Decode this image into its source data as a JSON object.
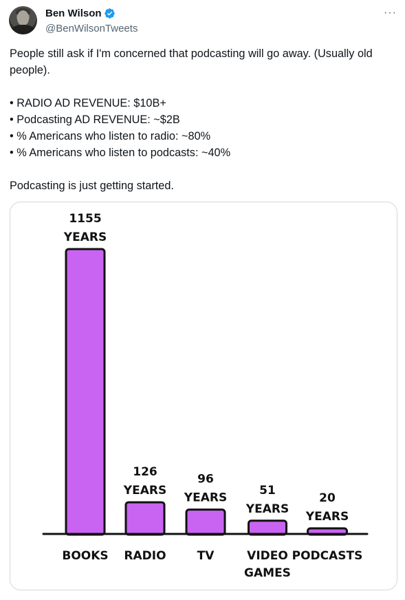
{
  "author": {
    "name": "Ben Wilson",
    "handle": "@BenWilsonTweets",
    "verified": true,
    "avatar_icon": "profile-photo",
    "verified_icon": "verified-badge-icon",
    "verified_color": "#1d9bf0"
  },
  "more_label": "···",
  "tweet": {
    "line1": "People still ask if I'm concerned that podcasting will go away. (Usually old people).",
    "bullets": [
      "• RADIO AD REVENUE: $10B+",
      "• Podcasting AD REVENUE: ~$2B",
      "• % Americans who listen to radio: ~80%",
      "• % Americans who listen to podcasts: ~40%"
    ],
    "closing": "Podcasting is just getting started."
  },
  "chart_data": {
    "type": "bar",
    "categories": [
      "BOOKS",
      "RADIO",
      "TV",
      "VIDEO GAMES",
      "PODCASTS"
    ],
    "category_lines": [
      [
        "BOOKS"
      ],
      [
        "RADIO"
      ],
      [
        "TV"
      ],
      [
        "VIDEO",
        "GAMES"
      ],
      [
        "PODCASTS"
      ]
    ],
    "values": [
      1155,
      126,
      96,
      51,
      20
    ],
    "value_labels": [
      [
        "1155",
        "YEARS"
      ],
      [
        "126",
        "YEARS"
      ],
      [
        "96",
        "YEARS"
      ],
      [
        "51",
        "YEARS"
      ],
      [
        "20",
        "YEARS"
      ]
    ],
    "unit": "YEARS",
    "bar_color": "#c964f2",
    "title": "",
    "xlabel": "",
    "ylabel": "",
    "grid": false
  }
}
